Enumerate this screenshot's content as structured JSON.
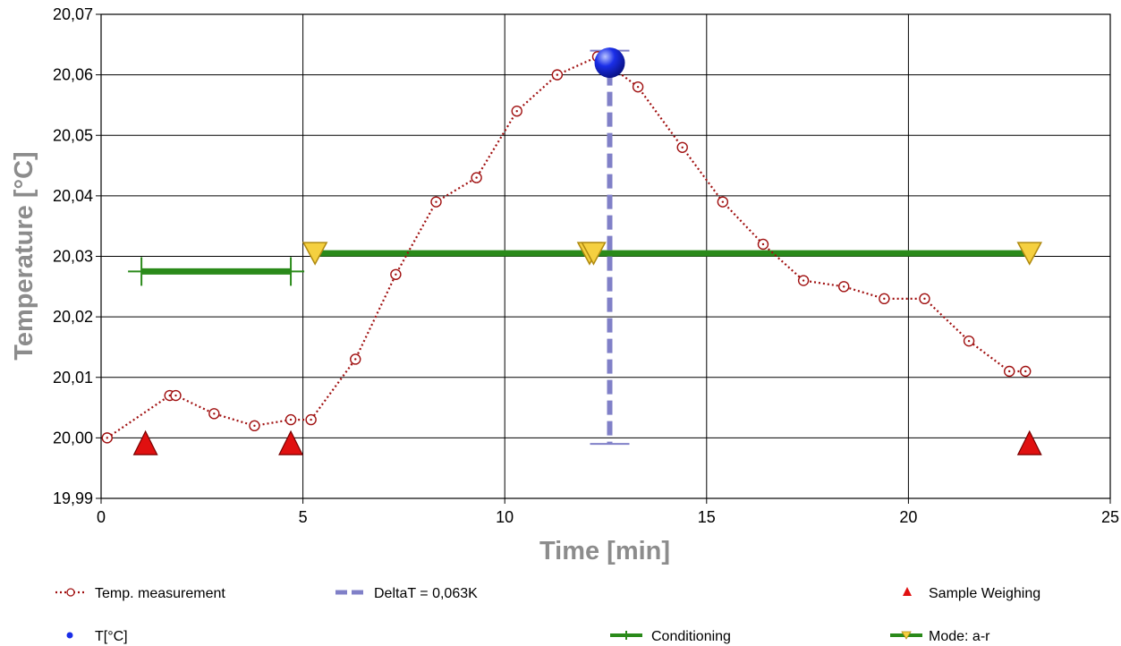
{
  "chart_data": {
    "type": "line",
    "title": "",
    "xlabel": "Time [min]",
    "ylabel": "Temperature [°C]",
    "xlim": [
      0,
      25
    ],
    "ylim": [
      19.99,
      20.07
    ],
    "x_ticks": [
      0,
      5,
      10,
      15,
      20,
      25
    ],
    "x_tick_labels": [
      "0",
      "5",
      "10",
      "15",
      "20",
      "25"
    ],
    "y_ticks": [
      19.99,
      20.0,
      20.01,
      20.02,
      20.03,
      20.04,
      20.05,
      20.06,
      20.07
    ],
    "y_tick_labels": [
      "19,99",
      "20,00",
      "20,01",
      "20,02",
      "20,03",
      "20,04",
      "20,05",
      "20,06",
      "20,07"
    ],
    "grid": true,
    "legend_position": "bottom",
    "series": [
      {
        "name": "Temp. measurement",
        "kind": "dotted-line-with-circles",
        "color": "#a01010",
        "x": [
          0.15,
          1.7,
          1.85,
          2.8,
          3.8,
          4.7,
          5.2,
          6.3,
          7.3,
          8.3,
          9.3,
          10.3,
          11.3,
          12.3,
          13.3,
          14.4,
          15.4,
          16.4,
          17.4,
          18.4,
          19.4,
          20.4,
          21.5,
          22.5,
          22.9
        ],
        "y": [
          20.0,
          20.007,
          20.007,
          20.004,
          20.002,
          20.003,
          20.003,
          20.013,
          20.027,
          20.039,
          20.043,
          20.054,
          20.06,
          20.063,
          20.058,
          20.048,
          20.039,
          20.032,
          20.026,
          20.025,
          20.023,
          20.023,
          20.016,
          20.011,
          20.011
        ]
      },
      {
        "name": "DeltaT = 0,063K",
        "kind": "dashed-vertical",
        "color": "#8080c8",
        "x": 12.6,
        "y_from": 19.999,
        "y_to": 20.064
      },
      {
        "name": "Sample Weighing",
        "kind": "triangle-up",
        "color": "#e01010",
        "x": [
          1.1,
          4.7,
          23.0
        ],
        "y": [
          19.999,
          19.999,
          19.999
        ]
      },
      {
        "name": "T[°C]",
        "kind": "big-point",
        "color": "#1a2ee8",
        "x": [
          12.6
        ],
        "y": [
          20.062
        ]
      },
      {
        "name": "Conditioning",
        "kind": "segment",
        "color": "#2a8a1a",
        "x_from": 1.0,
        "x_to": 4.7,
        "y": 20.0275
      },
      {
        "name": "Mode: a-r",
        "kind": "segment-with-triangles-down",
        "color": "#2a8a1a",
        "marker_color": "#f5d040",
        "x_from": 5.3,
        "x_to": 23.0,
        "y": 20.0305,
        "markers_x": [
          5.3,
          12.1,
          12.2,
          23.0
        ]
      }
    ]
  }
}
